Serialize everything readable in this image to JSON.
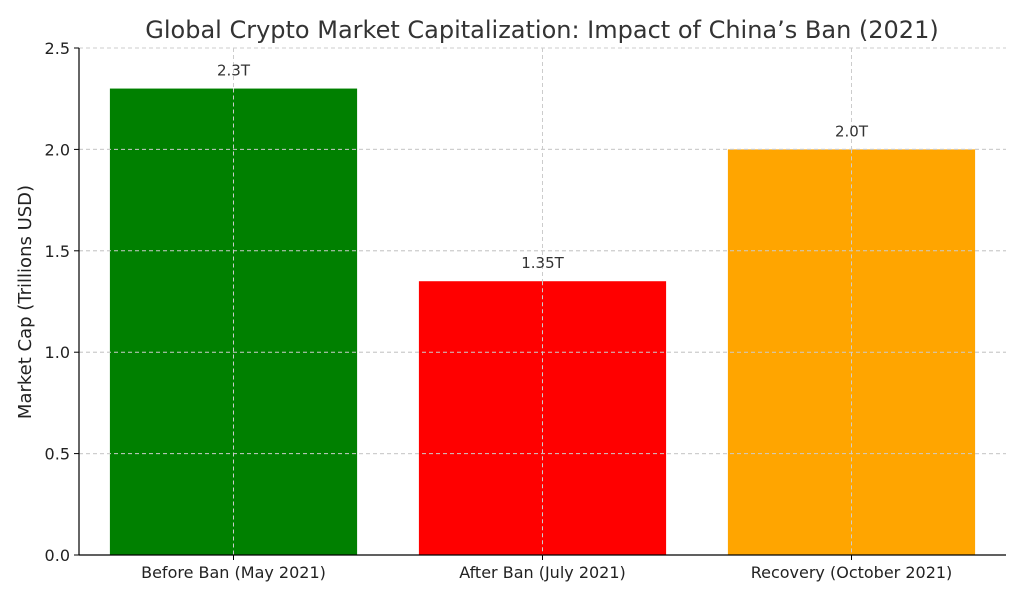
{
  "chart_data": {
    "type": "bar",
    "title": "Global Crypto Market Capitalization: Impact of China’s Ban (2021)",
    "xlabel": "",
    "ylabel": "Market Cap (Trillions USD)",
    "categories": [
      "Before Ban (May 2021)",
      "After Ban (July 2021)",
      "Recovery (October 2021)"
    ],
    "values": [
      2.3,
      1.35,
      2.0
    ],
    "data_labels": [
      "2.3T",
      "1.35T",
      "2.0T"
    ],
    "colors": [
      "#008000",
      "#ff0000",
      "#ffa500"
    ],
    "ylim": [
      0,
      2.5
    ],
    "yticks": [
      "0.0",
      "0.5",
      "1.0",
      "1.5",
      "2.0",
      "2.5"
    ],
    "grid": true
  }
}
